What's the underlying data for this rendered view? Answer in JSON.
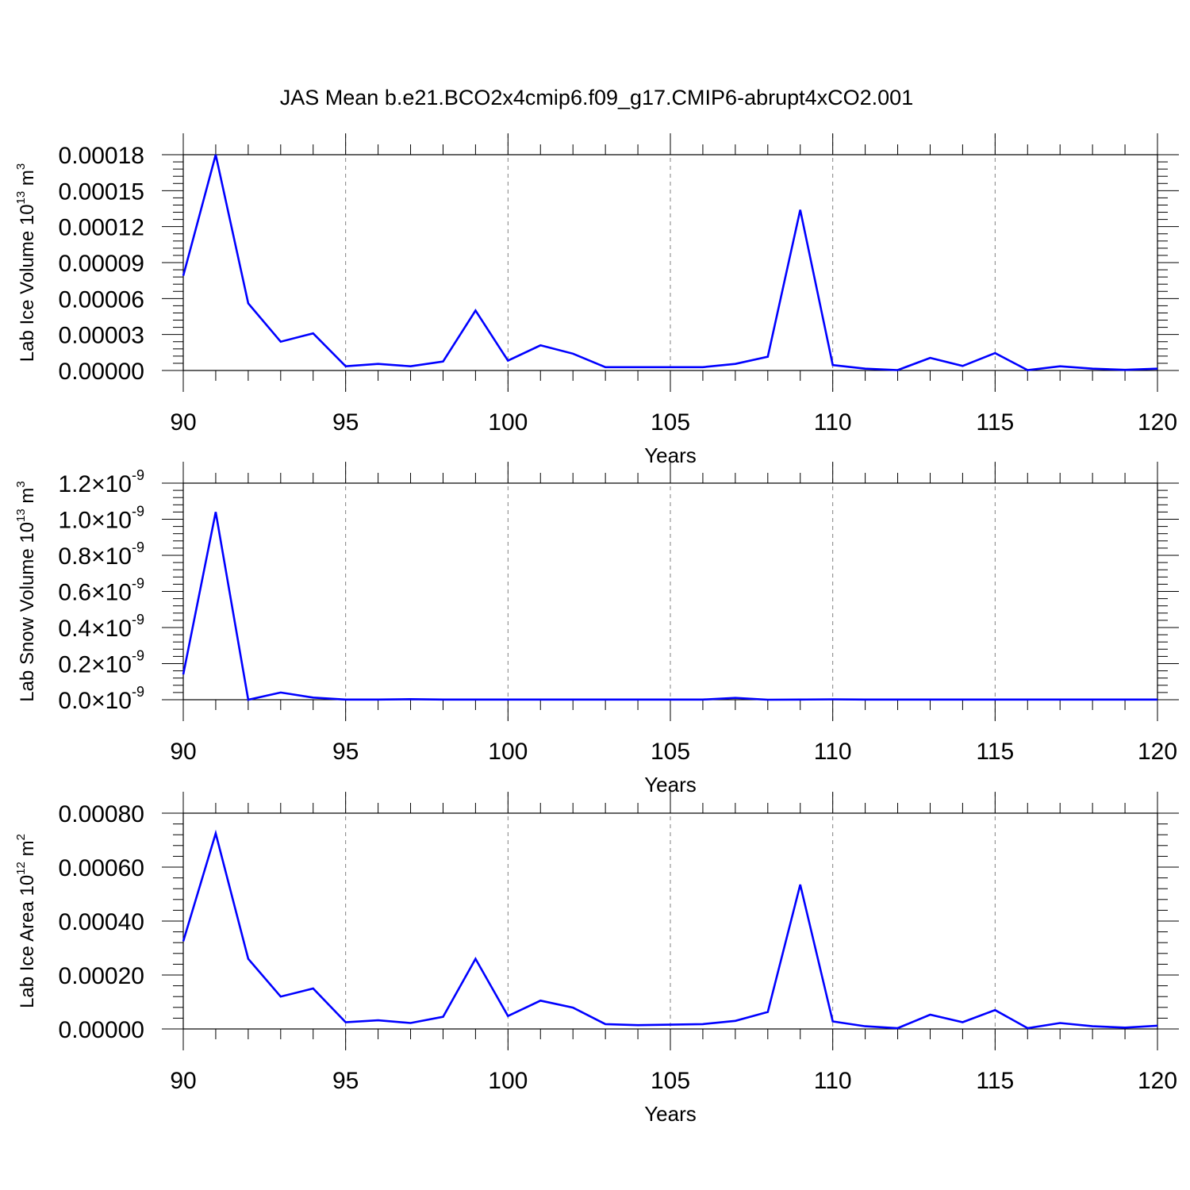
{
  "title": "JAS Mean b.e21.BCO2x4cmip6.f09_g17.CMIP6-abrupt4xCO2.001",
  "colors": {
    "line": "#0000ff",
    "axis": "#000000",
    "grid": "#808080",
    "background": "#ffffff"
  },
  "chart_data": [
    {
      "type": "line",
      "xlabel": "Years",
      "ylabel_main": "Lab Ice Volume 10",
      "ylabel_sup": "13",
      "ylabel_unit": " m",
      "ylabel_unit_sup": "3",
      "xlim": [
        90,
        120
      ],
      "ylim": [
        0,
        0.00018
      ],
      "x_ticks": [
        "90",
        "95",
        "100",
        "105",
        "110",
        "115",
        "120"
      ],
      "y_tick_values": [
        0,
        3e-05,
        6e-05,
        9e-05,
        0.00012,
        0.00015,
        0.00018
      ],
      "y_tick_labels": [
        {
          "main": "0.00000",
          "sup": ""
        },
        {
          "main": "0.00003",
          "sup": ""
        },
        {
          "main": "0.00006",
          "sup": ""
        },
        {
          "main": "0.00009",
          "sup": ""
        },
        {
          "main": "0.00012",
          "sup": ""
        },
        {
          "main": "0.00015",
          "sup": ""
        },
        {
          "main": "0.00018",
          "sup": ""
        }
      ],
      "grid": "dashed vertical at major x ticks",
      "x": [
        90,
        91,
        92,
        93,
        94,
        95,
        96,
        97,
        98,
        99,
        100,
        101,
        102,
        103,
        104,
        105,
        106,
        107,
        108,
        109,
        110,
        111,
        112,
        113,
        114,
        115,
        116,
        117,
        118,
        119,
        120
      ],
      "y": [
        7.9e-05,
        0.00018,
        5.6e-05,
        2.4e-05,
        3.1e-05,
        3.5e-06,
        5.5e-06,
        3.5e-06,
        7.5e-06,
        5e-05,
        8.2e-06,
        2.1e-05,
        1.4e-05,
        2.8e-06,
        2.8e-06,
        2.8e-06,
        2.8e-06,
        5.5e-06,
        1.15e-05,
        0.000134,
        4.5e-06,
        1.5e-06,
        3e-07,
        1.05e-05,
        3.8e-06,
        1.45e-05,
        3e-07,
        3.5e-06,
        1.5e-06,
        5e-07,
        1.5e-06
      ]
    },
    {
      "type": "line",
      "xlabel": "Years",
      "ylabel_main": "Lab Snow Volume 10",
      "ylabel_sup": "13",
      "ylabel_unit": " m",
      "ylabel_unit_sup": "3",
      "xlim": [
        90,
        120
      ],
      "ylim": [
        0,
        1.2e-09
      ],
      "x_ticks": [
        "90",
        "95",
        "100",
        "105",
        "110",
        "115",
        "120"
      ],
      "y_tick_values": [
        0,
        2e-10,
        4e-10,
        6e-10,
        8e-10,
        1e-09,
        1.2e-09
      ],
      "y_tick_labels": [
        {
          "main": "0.0×10",
          "sup": "-9"
        },
        {
          "main": "0.2×10",
          "sup": "-9"
        },
        {
          "main": "0.4×10",
          "sup": "-9"
        },
        {
          "main": "0.6×10",
          "sup": "-9"
        },
        {
          "main": "0.8×10",
          "sup": "-9"
        },
        {
          "main": "1.0×10",
          "sup": "-9"
        },
        {
          "main": "1.2×10",
          "sup": "-9"
        }
      ],
      "grid": "dashed vertical at major x ticks",
      "x": [
        90,
        91,
        92,
        93,
        94,
        95,
        96,
        97,
        98,
        99,
        100,
        101,
        102,
        103,
        104,
        105,
        106,
        107,
        108,
        109,
        110,
        111,
        112,
        113,
        114,
        115,
        116,
        117,
        118,
        119,
        120
      ],
      "y": [
        1.4e-10,
        1.04e-09,
        0,
        4e-11,
        1.2e-11,
        1e-12,
        1e-12,
        3e-12,
        1e-12,
        1e-12,
        1e-12,
        1e-12,
        1e-12,
        1e-12,
        1e-12,
        1e-12,
        1e-12,
        1e-11,
        0,
        1e-12,
        2e-12,
        1e-12,
        1e-12,
        1e-12,
        1e-12,
        1e-12,
        1e-12,
        1e-12,
        1e-12,
        1e-12,
        1e-12
      ]
    },
    {
      "type": "line",
      "xlabel": "Years",
      "ylabel_main": "Lab Ice Area 10",
      "ylabel_sup": "12",
      "ylabel_unit": " m",
      "ylabel_unit_sup": "2",
      "xlim": [
        90,
        120
      ],
      "ylim": [
        0,
        0.0008
      ],
      "x_ticks": [
        "90",
        "95",
        "100",
        "105",
        "110",
        "115",
        "120"
      ],
      "y_tick_values": [
        0,
        0.0002,
        0.0004,
        0.0006,
        0.0008
      ],
      "y_tick_labels": [
        {
          "main": "0.00000",
          "sup": ""
        },
        {
          "main": "0.00020",
          "sup": ""
        },
        {
          "main": "0.00040",
          "sup": ""
        },
        {
          "main": "0.00060",
          "sup": ""
        },
        {
          "main": "0.00080",
          "sup": ""
        }
      ],
      "grid": "dashed vertical at major x ticks",
      "x": [
        90,
        91,
        92,
        93,
        94,
        95,
        96,
        97,
        98,
        99,
        100,
        101,
        102,
        103,
        104,
        105,
        106,
        107,
        108,
        109,
        110,
        111,
        112,
        113,
        114,
        115,
        116,
        117,
        118,
        119,
        120
      ],
      "y": [
        0.000325,
        0.000725,
        0.00026,
        0.00012,
        0.00015,
        2.5e-05,
        3.2e-05,
        2.2e-05,
        4.5e-05,
        0.00026,
        4.8e-05,
        0.000105,
        7.9e-05,
        1.8e-05,
        1.4e-05,
        1.6e-05,
        1.8e-05,
        3e-05,
        6.3e-05,
        0.000535,
        2.8e-05,
        1e-05,
        3e-06,
        5.3e-05,
        2.5e-05,
        7e-05,
        3e-06,
        2.2e-05,
        1e-05,
        5e-06,
        1.2e-05
      ]
    }
  ]
}
